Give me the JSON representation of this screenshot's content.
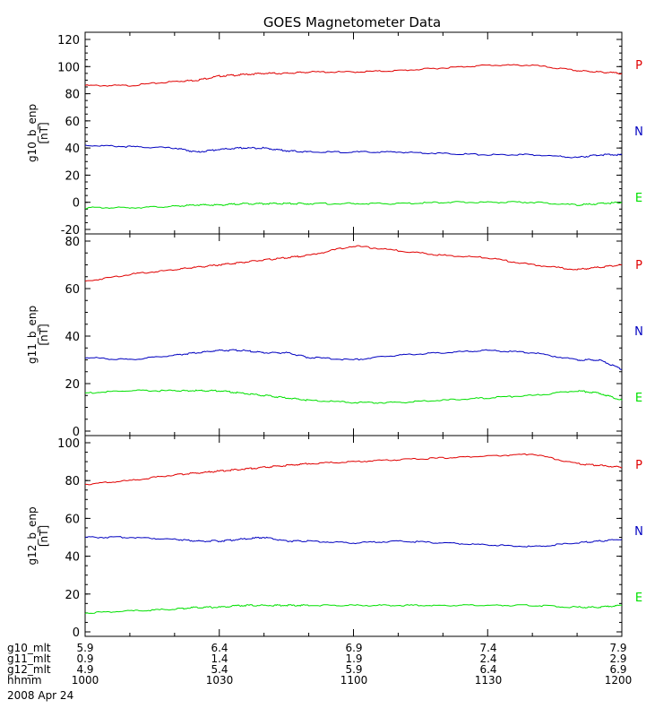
{
  "title": "GOES Magnetometer Data",
  "colors": {
    "P": "#e00000",
    "N": "#0000c0",
    "E": "#00e000",
    "axis": "#000000",
    "background": "#ffffff"
  },
  "chart_data": [
    {
      "type": "line",
      "ylabel": "g10_b_enp\n[nT]",
      "ylim": [
        -20,
        120
      ],
      "yticks": [
        -20,
        0,
        20,
        40,
        60,
        80,
        100,
        120
      ],
      "xlim": [
        0,
        120
      ],
      "x_unit": "minutes after 1000",
      "x": [
        0,
        10,
        20,
        25,
        30,
        35,
        40,
        45,
        50,
        60,
        70,
        80,
        90,
        100,
        110,
        115,
        120
      ],
      "series": [
        {
          "name": "P",
          "values": [
            86,
            86,
            89,
            90,
            93,
            94,
            95,
            95,
            96,
            96,
            97,
            99,
            101,
            101,
            97,
            96,
            95
          ]
        },
        {
          "name": "N",
          "values": [
            42,
            41,
            40,
            37,
            39,
            40,
            40,
            38,
            37,
            37,
            37,
            36,
            35,
            35,
            33,
            35,
            35
          ]
        },
        {
          "name": "E",
          "values": [
            -4,
            -4,
            -3,
            -2,
            -2,
            -1,
            -1,
            -1,
            -1,
            -1,
            -1,
            0,
            0,
            0,
            -2,
            -1,
            0
          ]
        }
      ]
    },
    {
      "type": "line",
      "ylabel": "g11_b_enp\n[nT]",
      "ylim": [
        0,
        80
      ],
      "yticks": [
        0,
        20,
        40,
        60,
        80
      ],
      "xlim": [
        0,
        120
      ],
      "x_unit": "minutes after 1000",
      "x": [
        0,
        10,
        20,
        25,
        30,
        35,
        40,
        45,
        50,
        60,
        70,
        80,
        90,
        100,
        110,
        115,
        120
      ],
      "series": [
        {
          "name": "P",
          "values": [
            63,
            66,
            68,
            69,
            70,
            71,
            72,
            73,
            74,
            78,
            76,
            74,
            73,
            70,
            68,
            69,
            70
          ]
        },
        {
          "name": "N",
          "values": [
            31,
            30,
            32,
            33,
            34,
            34,
            33,
            33,
            31,
            30,
            32,
            33,
            34,
            33,
            30,
            30,
            26
          ]
        },
        {
          "name": "E",
          "values": [
            16,
            17,
            17,
            17,
            17,
            16,
            15,
            14,
            13,
            12,
            12,
            13,
            14,
            15,
            17,
            16,
            13
          ]
        }
      ]
    },
    {
      "type": "line",
      "ylabel": "g12_b_enp\n[nT]",
      "ylim": [
        0,
        100
      ],
      "yticks": [
        0,
        20,
        40,
        60,
        80,
        100
      ],
      "xlim": [
        0,
        120
      ],
      "x_unit": "minutes after 1000",
      "x": [
        0,
        10,
        20,
        25,
        30,
        35,
        40,
        45,
        50,
        60,
        70,
        80,
        90,
        100,
        110,
        115,
        120
      ],
      "series": [
        {
          "name": "P",
          "values": [
            78,
            80,
            83,
            84,
            85,
            86,
            87,
            88,
            89,
            90,
            91,
            92,
            93,
            94,
            89,
            88,
            87
          ]
        },
        {
          "name": "N",
          "values": [
            50,
            50,
            49,
            48,
            48,
            49,
            50,
            48,
            48,
            47,
            48,
            47,
            46,
            45,
            47,
            48,
            49
          ]
        },
        {
          "name": "E",
          "values": [
            10,
            11,
            12,
            13,
            13,
            14,
            14,
            14,
            14,
            14,
            14,
            14,
            14,
            14,
            13,
            13,
            14
          ]
        }
      ]
    }
  ],
  "x_axis_table": [
    {
      "label": "g10_mlt",
      "values": [
        "5.9",
        "6.4",
        "6.9",
        "7.4",
        "7.9"
      ]
    },
    {
      "label": "g11_mlt",
      "values": [
        "0.9",
        "1.4",
        "1.9",
        "2.4",
        "2.9"
      ]
    },
    {
      "label": "g12_mlt",
      "values": [
        "4.9",
        "5.4",
        "5.9",
        "6.4",
        "6.9"
      ]
    },
    {
      "label": "hhmm",
      "values": [
        "1000",
        "1030",
        "1100",
        "1130",
        "1200"
      ]
    }
  ],
  "date_label": "2008 Apr 24"
}
